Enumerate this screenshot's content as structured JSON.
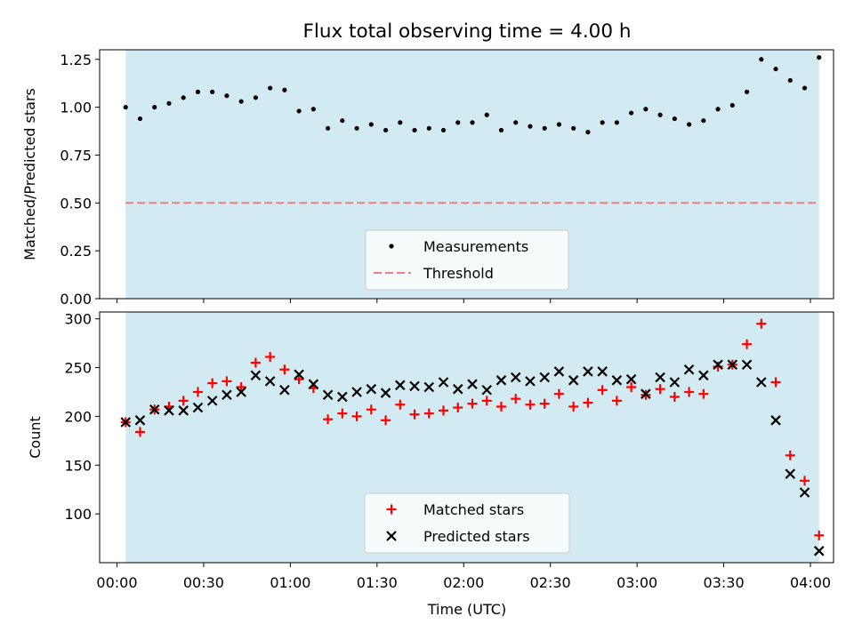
{
  "title": "Flux total observing time = 4.00 h",
  "colors": {
    "shade": "#add8e6",
    "measurement": "#000000",
    "threshold": "#f08080",
    "matched": "#ff0000",
    "predicted": "#000000"
  },
  "chart_data": [
    {
      "type": "scatter",
      "name": "ratio",
      "ylabel": "Matched/Predicted stars",
      "xlabel": "",
      "xlim": [
        -6,
        248
      ],
      "ylim": [
        0,
        1.3
      ],
      "yticks": [
        0,
        0.25,
        0.5,
        0.75,
        1.0,
        1.25
      ],
      "ytick_labels": [
        "0.00",
        "0.25",
        "0.50",
        "0.75",
        "1.00",
        "1.25"
      ],
      "shaded_range": [
        3,
        243
      ],
      "threshold": 0.5,
      "legend": {
        "location": "lower center",
        "entries": [
          "Measurements",
          "Threshold"
        ]
      },
      "series": [
        {
          "name": "Measurements",
          "marker": "dot",
          "x": [
            3,
            8,
            13,
            18,
            23,
            28,
            33,
            38,
            43,
            48,
            53,
            58,
            63,
            68,
            73,
            78,
            83,
            88,
            93,
            98,
            103,
            108,
            113,
            118,
            123,
            128,
            133,
            138,
            143,
            148,
            153,
            158,
            163,
            168,
            173,
            178,
            183,
            188,
            193,
            198,
            203,
            208,
            213,
            218,
            223,
            228,
            233,
            238,
            243
          ],
          "y": [
            1.0,
            0.94,
            1.0,
            1.02,
            1.05,
            1.08,
            1.08,
            1.06,
            1.03,
            1.05,
            1.1,
            1.09,
            0.98,
            0.99,
            0.89,
            0.93,
            0.89,
            0.91,
            0.88,
            0.92,
            0.88,
            0.89,
            0.88,
            0.92,
            0.92,
            0.96,
            0.88,
            0.92,
            0.9,
            0.89,
            0.91,
            0.89,
            0.87,
            0.92,
            0.92,
            0.97,
            0.99,
            0.96,
            0.94,
            0.91,
            0.93,
            0.99,
            1.01,
            1.08,
            1.25,
            1.2,
            1.14,
            1.1,
            1.26
          ]
        }
      ]
    },
    {
      "type": "scatter",
      "name": "counts",
      "ylabel": "Count",
      "xlabel": "Time (UTC)",
      "xlim": [
        -6,
        248
      ],
      "ylim": [
        50,
        307
      ],
      "yticks": [
        100,
        150,
        200,
        250,
        300
      ],
      "ytick_labels": [
        "100",
        "150",
        "200",
        "250",
        "300"
      ],
      "xticks": [
        0,
        30,
        60,
        90,
        120,
        150,
        180,
        210,
        240
      ],
      "xtick_labels": [
        "00:00",
        "00:30",
        "01:00",
        "01:30",
        "02:00",
        "02:30",
        "03:00",
        "03:30",
        "04:00"
      ],
      "shaded_range": [
        3,
        243
      ],
      "legend": {
        "location": "lower center",
        "entries": [
          "Matched stars",
          "Predicted stars"
        ]
      },
      "series": [
        {
          "name": "Matched stars",
          "marker": "plus",
          "x": [
            3,
            8,
            13,
            18,
            23,
            28,
            33,
            38,
            43,
            48,
            53,
            58,
            63,
            68,
            73,
            78,
            83,
            88,
            93,
            98,
            103,
            108,
            113,
            118,
            123,
            128,
            133,
            138,
            143,
            148,
            153,
            158,
            163,
            168,
            173,
            178,
            183,
            188,
            193,
            198,
            203,
            208,
            213,
            218,
            223,
            228,
            233,
            238,
            243
          ],
          "y": [
            194,
            184,
            207,
            210,
            216,
            225,
            234,
            236,
            230,
            255,
            261,
            248,
            238,
            229,
            197,
            203,
            200,
            207,
            196,
            212,
            202,
            203,
            206,
            209,
            213,
            216,
            210,
            218,
            212,
            213,
            223,
            210,
            214,
            227,
            216,
            230,
            222,
            228,
            220,
            225,
            223,
            251,
            253,
            274,
            295,
            235,
            160,
            134,
            78
          ]
        },
        {
          "name": "Predicted stars",
          "marker": "x",
          "x": [
            3,
            8,
            13,
            18,
            23,
            28,
            33,
            38,
            43,
            48,
            53,
            58,
            63,
            68,
            73,
            78,
            83,
            88,
            93,
            98,
            103,
            108,
            113,
            118,
            123,
            128,
            133,
            138,
            143,
            148,
            153,
            158,
            163,
            168,
            173,
            178,
            183,
            188,
            193,
            198,
            203,
            208,
            213,
            218,
            223,
            228,
            233,
            238,
            243
          ],
          "y": [
            194,
            196,
            207,
            206,
            206,
            209,
            216,
            222,
            225,
            242,
            236,
            227,
            243,
            233,
            222,
            220,
            225,
            228,
            224,
            232,
            231,
            230,
            235,
            228,
            233,
            227,
            237,
            240,
            236,
            240,
            246,
            237,
            246,
            246,
            237,
            238,
            223,
            240,
            235,
            248,
            242,
            253,
            253,
            253,
            235,
            196,
            141,
            122,
            62
          ]
        }
      ]
    }
  ]
}
